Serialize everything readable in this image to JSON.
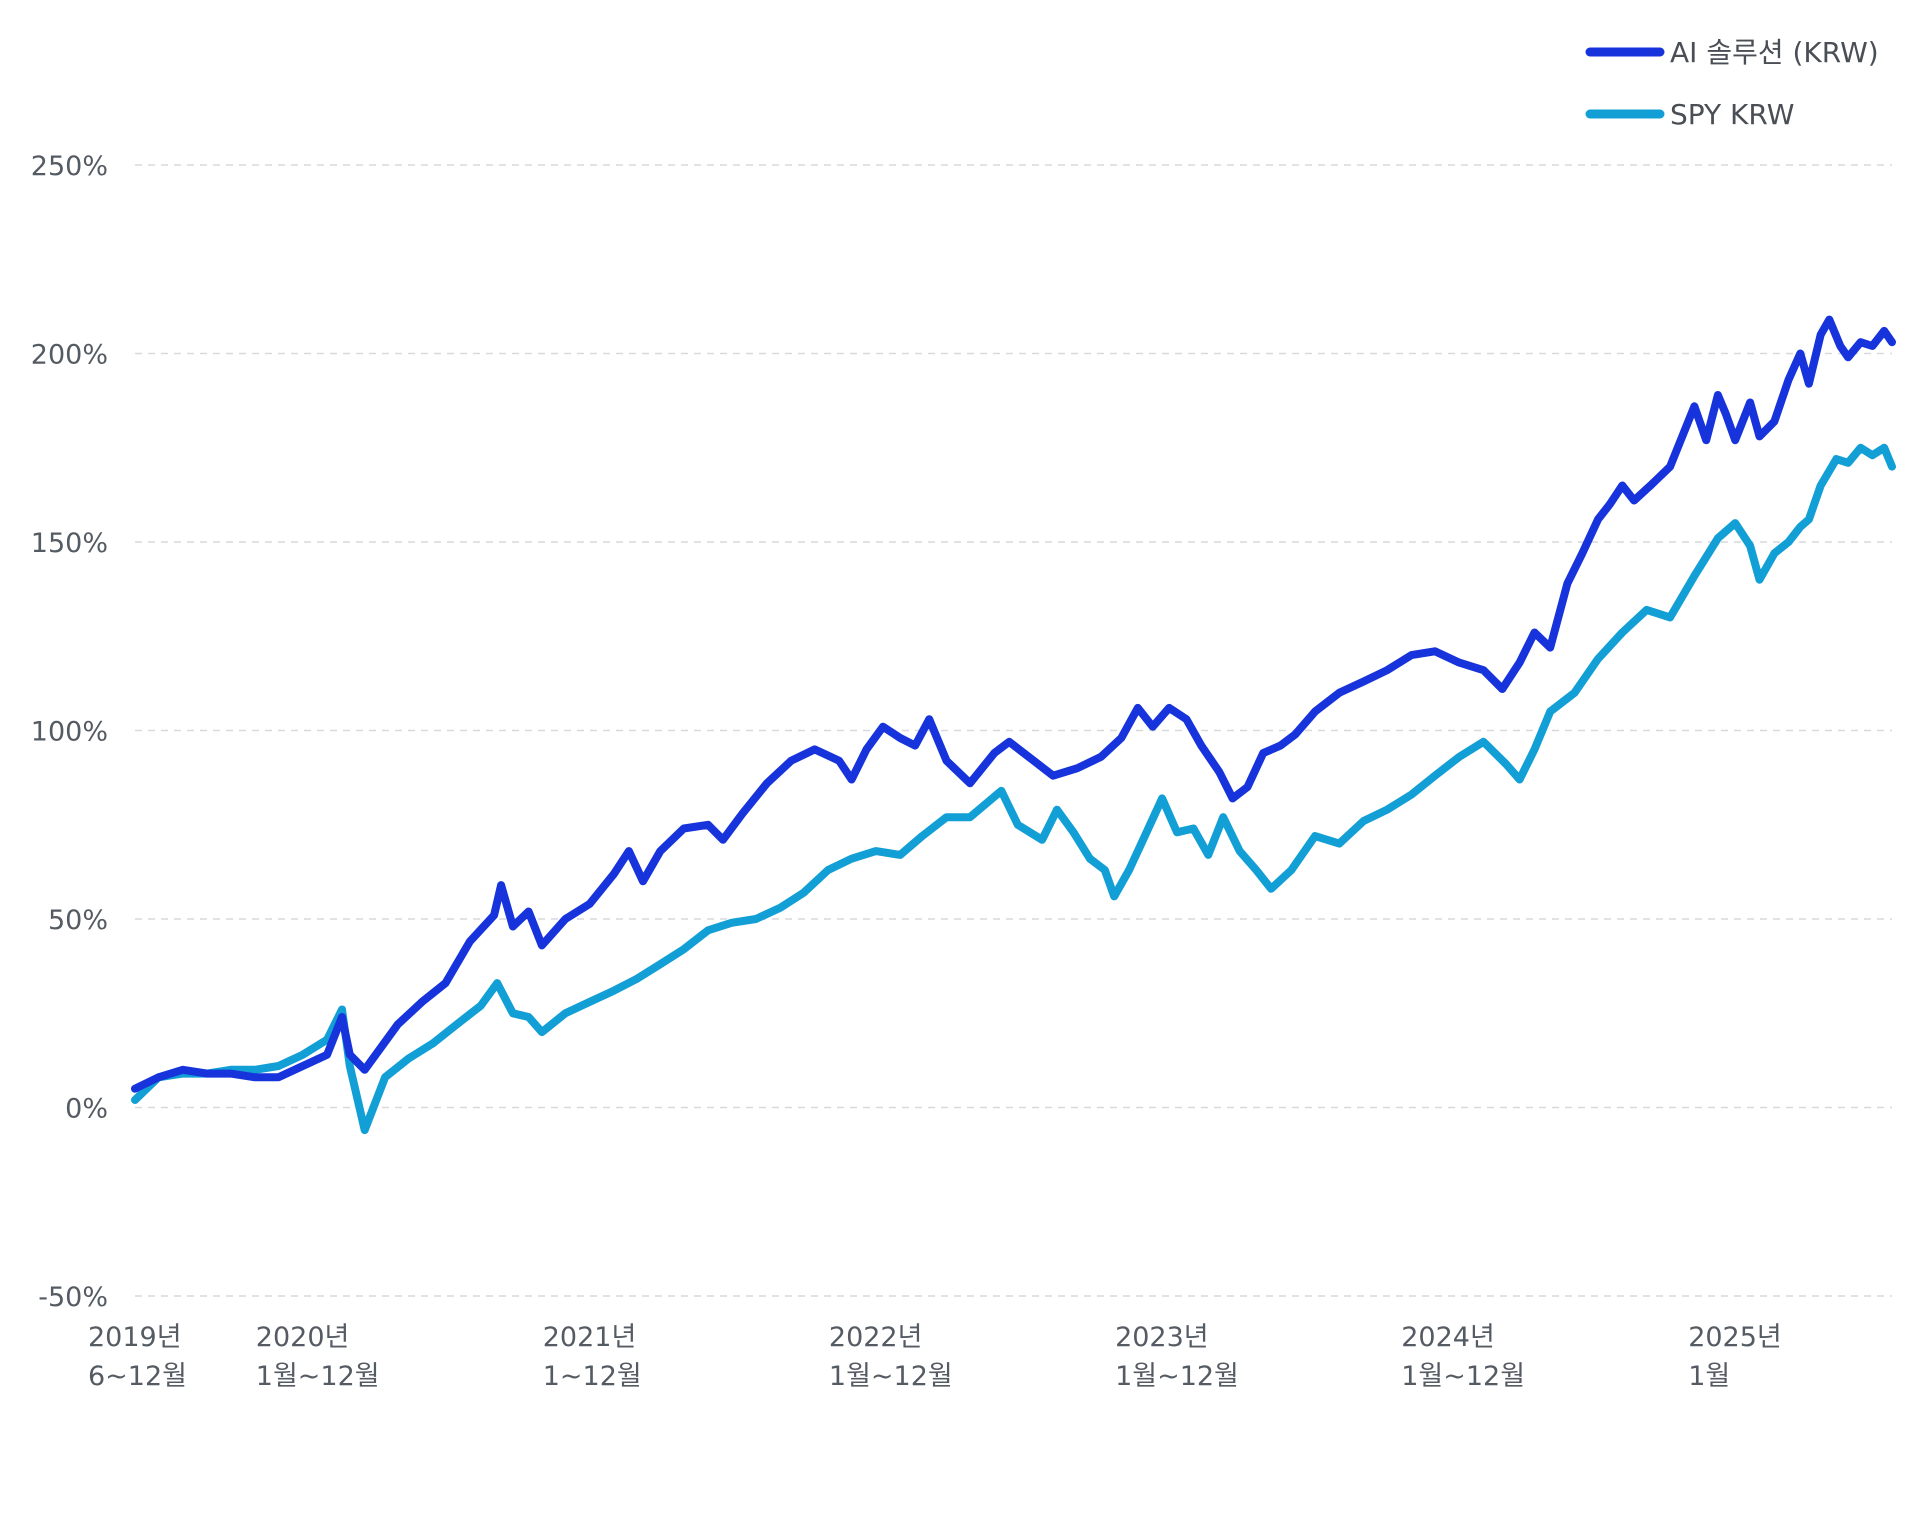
{
  "colors": {
    "ai_solution": "#1734dc",
    "spy_krw": "#129fd5",
    "grid": "#d7d9dd",
    "text": "#555b63"
  },
  "legend": {
    "placement": "top-right",
    "items": [
      {
        "label": "AI 솔루션 (KRW)",
        "color": "#1734dc"
      },
      {
        "label": "SPY KRW",
        "color": "#129fd5"
      }
    ]
  },
  "y_axis": {
    "tick_labels": [
      "250%",
      "200%",
      "150%",
      "100%",
      "50%",
      "0%",
      "-50%"
    ]
  },
  "x_axis": {
    "tick_labels": [
      {
        "line1": "2019년",
        "line2": "6~12월"
      },
      {
        "line1": "2020년",
        "line2": "1월~12월"
      },
      {
        "line1": "2021년",
        "line2": "1~12월"
      },
      {
        "line1": "2022년",
        "line2": "1월~12월"
      },
      {
        "line1": "2023년",
        "line2": "1월~12월"
      },
      {
        "line1": "2024년",
        "line2": "1월~12월"
      },
      {
        "line1": "2025년",
        "line2": "1월"
      }
    ]
  },
  "chart_data": {
    "type": "line",
    "title": "",
    "xlabel": "",
    "ylabel": "",
    "ylim": [
      -50,
      250
    ],
    "xlim": [
      "2019-06-01",
      "2025-07-20"
    ],
    "grid": "horizontal dashed",
    "yticks": [
      250,
      200,
      150,
      100,
      50,
      0,
      -50
    ],
    "xtick_dates": [
      "2019-06-01",
      "2020-01-01",
      "2021-01-01",
      "2022-01-01",
      "2023-01-01",
      "2024-01-01",
      "2025-01-01"
    ],
    "series": [
      {
        "name": "AI 솔루션 (KRW)",
        "color": "#1734dc",
        "points": [
          [
            "2019-06-01",
            5
          ],
          [
            "2019-07-01",
            8
          ],
          [
            "2019-08-01",
            10
          ],
          [
            "2019-09-01",
            9
          ],
          [
            "2019-10-01",
            9
          ],
          [
            "2019-11-01",
            8
          ],
          [
            "2019-12-01",
            8
          ],
          [
            "2020-01-01",
            11
          ],
          [
            "2020-02-01",
            14
          ],
          [
            "2020-02-20",
            24
          ],
          [
            "2020-03-01",
            14
          ],
          [
            "2020-03-20",
            10
          ],
          [
            "2020-05-01",
            22
          ],
          [
            "2020-06-01",
            28
          ],
          [
            "2020-07-01",
            33
          ],
          [
            "2020-08-01",
            44
          ],
          [
            "2020-09-01",
            51
          ],
          [
            "2020-09-10",
            59
          ],
          [
            "2020-09-25",
            48
          ],
          [
            "2020-10-15",
            52
          ],
          [
            "2020-11-01",
            43
          ],
          [
            "2020-12-01",
            50
          ],
          [
            "2021-01-01",
            54
          ],
          [
            "2021-02-01",
            62
          ],
          [
            "2021-02-20",
            68
          ],
          [
            "2021-03-10",
            60
          ],
          [
            "2021-04-01",
            68
          ],
          [
            "2021-05-01",
            74
          ],
          [
            "2021-06-01",
            75
          ],
          [
            "2021-06-20",
            71
          ],
          [
            "2021-07-15",
            78
          ],
          [
            "2021-08-15",
            86
          ],
          [
            "2021-09-15",
            92
          ],
          [
            "2021-10-15",
            95
          ],
          [
            "2021-11-15",
            92
          ],
          [
            "2021-12-01",
            87
          ],
          [
            "2021-12-20",
            95
          ],
          [
            "2022-01-10",
            101
          ],
          [
            "2022-02-01",
            98
          ],
          [
            "2022-02-20",
            96
          ],
          [
            "2022-03-10",
            103
          ],
          [
            "2022-04-01",
            92
          ],
          [
            "2022-05-01",
            86
          ],
          [
            "2022-06-01",
            94
          ],
          [
            "2022-06-20",
            97
          ],
          [
            "2022-07-15",
            93
          ],
          [
            "2022-08-15",
            88
          ],
          [
            "2022-09-15",
            90
          ],
          [
            "2022-10-15",
            93
          ],
          [
            "2022-11-10",
            98
          ],
          [
            "2022-12-01",
            106
          ],
          [
            "2022-12-20",
            101
          ],
          [
            "2023-01-10",
            106
          ],
          [
            "2023-02-01",
            103
          ],
          [
            "2023-02-20",
            96
          ],
          [
            "2023-03-15",
            89
          ],
          [
            "2023-04-01",
            82
          ],
          [
            "2023-04-20",
            85
          ],
          [
            "2023-05-10",
            94
          ],
          [
            "2023-06-01",
            96
          ],
          [
            "2023-06-20",
            99
          ],
          [
            "2023-07-15",
            105
          ],
          [
            "2023-08-15",
            110
          ],
          [
            "2023-09-15",
            113
          ],
          [
            "2023-10-15",
            116
          ],
          [
            "2023-11-15",
            120
          ],
          [
            "2023-12-15",
            121
          ],
          [
            "2024-01-15",
            118
          ],
          [
            "2024-02-15",
            116
          ],
          [
            "2024-03-10",
            111
          ],
          [
            "2024-04-01",
            118
          ],
          [
            "2024-04-20",
            126
          ],
          [
            "2024-05-10",
            122
          ],
          [
            "2024-06-01",
            139
          ],
          [
            "2024-06-20",
            147
          ],
          [
            "2024-07-10",
            156
          ],
          [
            "2024-07-25",
            160
          ],
          [
            "2024-08-10",
            165
          ],
          [
            "2024-08-25",
            161
          ],
          [
            "2024-09-15",
            165
          ],
          [
            "2024-10-10",
            170
          ],
          [
            "2024-11-10",
            186
          ],
          [
            "2024-11-25",
            177
          ],
          [
            "2024-12-10",
            189
          ],
          [
            "2024-12-20",
            184
          ],
          [
            "2025-01-01",
            177
          ],
          [
            "2025-01-20",
            187
          ],
          [
            "2025-02-01",
            178
          ],
          [
            "2025-02-20",
            182
          ],
          [
            "2025-03-10",
            193
          ],
          [
            "2025-03-25",
            200
          ],
          [
            "2025-04-05",
            192
          ],
          [
            "2025-04-20",
            205
          ],
          [
            "2025-05-01",
            209
          ],
          [
            "2025-05-15",
            202
          ],
          [
            "2025-05-25",
            199
          ],
          [
            "2025-06-10",
            203
          ],
          [
            "2025-06-25",
            202
          ],
          [
            "2025-07-10",
            206
          ],
          [
            "2025-07-20",
            203
          ]
        ]
      },
      {
        "name": "SPY KRW",
        "color": "#129fd5",
        "points": [
          [
            "2019-06-01",
            2
          ],
          [
            "2019-07-01",
            8
          ],
          [
            "2019-08-01",
            9
          ],
          [
            "2019-09-01",
            9
          ],
          [
            "2019-10-01",
            10
          ],
          [
            "2019-11-01",
            10
          ],
          [
            "2019-12-01",
            11
          ],
          [
            "2020-01-01",
            14
          ],
          [
            "2020-02-01",
            18
          ],
          [
            "2020-02-20",
            26
          ],
          [
            "2020-03-01",
            11
          ],
          [
            "2020-03-20",
            -6
          ],
          [
            "2020-04-15",
            8
          ],
          [
            "2020-05-15",
            13
          ],
          [
            "2020-06-15",
            17
          ],
          [
            "2020-07-15",
            22
          ],
          [
            "2020-08-15",
            27
          ],
          [
            "2020-09-05",
            33
          ],
          [
            "2020-09-25",
            25
          ],
          [
            "2020-10-15",
            24
          ],
          [
            "2020-11-01",
            20
          ],
          [
            "2020-12-01",
            25
          ],
          [
            "2021-01-01",
            28
          ],
          [
            "2021-02-01",
            31
          ],
          [
            "2021-03-01",
            34
          ],
          [
            "2021-04-01",
            38
          ],
          [
            "2021-05-01",
            42
          ],
          [
            "2021-06-01",
            47
          ],
          [
            "2021-07-01",
            49
          ],
          [
            "2021-08-01",
            50
          ],
          [
            "2021-09-01",
            53
          ],
          [
            "2021-10-01",
            57
          ],
          [
            "2021-11-01",
            63
          ],
          [
            "2021-12-01",
            66
          ],
          [
            "2022-01-01",
            68
          ],
          [
            "2022-02-01",
            67
          ],
          [
            "2022-03-01",
            72
          ],
          [
            "2022-04-01",
            77
          ],
          [
            "2022-05-01",
            77
          ],
          [
            "2022-06-10",
            84
          ],
          [
            "2022-07-01",
            75
          ],
          [
            "2022-08-01",
            71
          ],
          [
            "2022-08-20",
            79
          ],
          [
            "2022-09-10",
            73
          ],
          [
            "2022-10-01",
            66
          ],
          [
            "2022-10-20",
            63
          ],
          [
            "2022-11-01",
            56
          ],
          [
            "2022-11-20",
            63
          ],
          [
            "2022-12-10",
            72
          ],
          [
            "2023-01-01",
            82
          ],
          [
            "2023-01-20",
            73
          ],
          [
            "2023-02-10",
            74
          ],
          [
            "2023-03-01",
            67
          ],
          [
            "2023-03-20",
            77
          ],
          [
            "2023-04-10",
            68
          ],
          [
            "2023-05-01",
            63
          ],
          [
            "2023-05-20",
            58
          ],
          [
            "2023-06-15",
            63
          ],
          [
            "2023-07-15",
            72
          ],
          [
            "2023-08-15",
            70
          ],
          [
            "2023-09-15",
            76
          ],
          [
            "2023-10-15",
            79
          ],
          [
            "2023-11-15",
            83
          ],
          [
            "2023-12-15",
            88
          ],
          [
            "2024-01-15",
            93
          ],
          [
            "2024-02-15",
            97
          ],
          [
            "2024-03-15",
            91
          ],
          [
            "2024-04-01",
            87
          ],
          [
            "2024-04-20",
            95
          ],
          [
            "2024-05-10",
            105
          ],
          [
            "2024-06-10",
            110
          ],
          [
            "2024-07-10",
            119
          ],
          [
            "2024-08-10",
            126
          ],
          [
            "2024-09-10",
            132
          ],
          [
            "2024-10-10",
            130
          ],
          [
            "2024-11-10",
            141
          ],
          [
            "2024-12-10",
            151
          ],
          [
            "2025-01-01",
            155
          ],
          [
            "2025-01-20",
            149
          ],
          [
            "2025-02-01",
            140
          ],
          [
            "2025-02-20",
            147
          ],
          [
            "2025-03-10",
            150
          ],
          [
            "2025-03-25",
            154
          ],
          [
            "2025-04-05",
            156
          ],
          [
            "2025-04-20",
            165
          ],
          [
            "2025-05-10",
            172
          ],
          [
            "2025-05-25",
            171
          ],
          [
            "2025-06-10",
            175
          ],
          [
            "2025-06-25",
            173
          ],
          [
            "2025-07-10",
            175
          ],
          [
            "2025-07-20",
            170
          ]
        ]
      }
    ]
  }
}
